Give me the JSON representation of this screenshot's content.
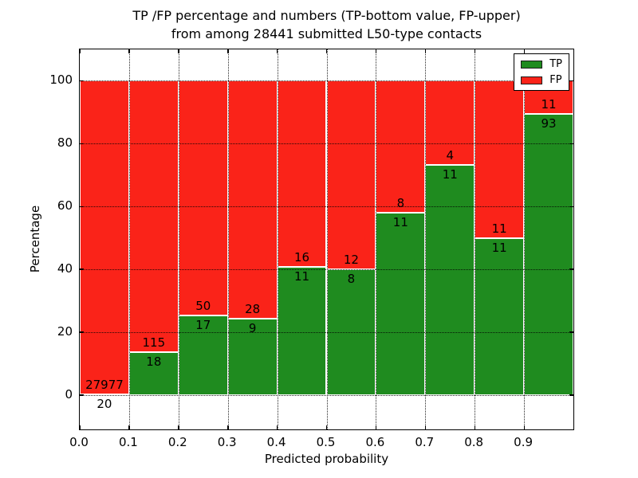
{
  "chart_data": {
    "type": "bar",
    "stacked": true,
    "values_are": "counts normalized to percent per bin; numeric labels show raw counts",
    "title_lines": [
      "TP /FP percentage and numbers (TP-bottom value, FP-upper)",
      "from among 28441 submitted L50-type contacts"
    ],
    "xlabel": "Predicted probability",
    "ylabel": "Percentage",
    "xlim": [
      0.0,
      1.0
    ],
    "ylim": [
      -11,
      110
    ],
    "bin_width": 0.1,
    "grid": "dotted",
    "x_ticks": [
      {
        "label": "0.0",
        "value": 0.0
      },
      {
        "label": "0.1",
        "value": 0.1
      },
      {
        "label": "0.2",
        "value": 0.2
      },
      {
        "label": "0.3",
        "value": 0.3
      },
      {
        "label": "0.4",
        "value": 0.4
      },
      {
        "label": "0.5",
        "value": 0.5
      },
      {
        "label": "0.6",
        "value": 0.6
      },
      {
        "label": "0.7",
        "value": 0.7
      },
      {
        "label": "0.8",
        "value": 0.8
      },
      {
        "label": "0.9",
        "value": 0.9
      }
    ],
    "y_ticks": [
      {
        "label": "0",
        "value": 0
      },
      {
        "label": "20",
        "value": 20
      },
      {
        "label": "40",
        "value": 40
      },
      {
        "label": "60",
        "value": 60
      },
      {
        "label": "80",
        "value": 80
      },
      {
        "label": "100",
        "value": 100
      }
    ],
    "series": [
      {
        "name": "TP",
        "color": "#1f8b1f",
        "counts": [
          20,
          18,
          17,
          9,
          11,
          8,
          11,
          11,
          11,
          93
        ]
      },
      {
        "name": "FP",
        "color": "#fa2319",
        "counts": [
          27977,
          115,
          50,
          28,
          16,
          12,
          8,
          4,
          11,
          11
        ]
      }
    ],
    "legend": {
      "position": "upper right",
      "entries": [
        {
          "label": "TP",
          "color": "#1f8b1f"
        },
        {
          "label": "FP",
          "color": "#fa2319"
        }
      ]
    }
  }
}
